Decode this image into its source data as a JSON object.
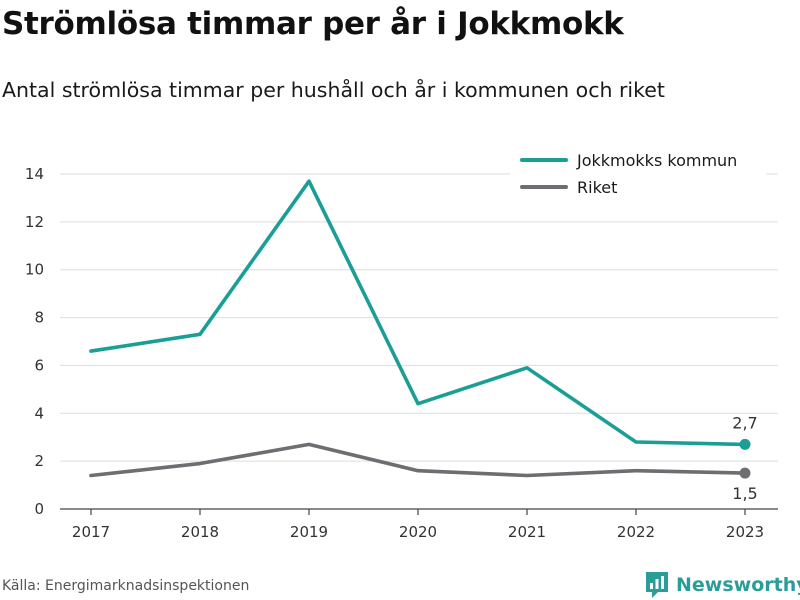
{
  "header": {
    "title": "Strömlösa timmar per år i Jokkmokk",
    "subtitle": "Antal strömlösa timmar per hushåll och år i kommunen och riket"
  },
  "footer": {
    "source": "Källa: Energimarknadsinspektionen",
    "brand": "Newsworthy"
  },
  "chart_data": {
    "type": "line",
    "title": "Strömlösa timmar per år i Jokkmokk",
    "subtitle": "Antal strömlösa timmar per hushåll och år i kommunen och riket",
    "x": [
      "2017",
      "2018",
      "2019",
      "2020",
      "2021",
      "2022",
      "2023"
    ],
    "xlabel": "",
    "ylabel": "",
    "ylim": [
      0,
      14
    ],
    "yticks": [
      0,
      2,
      4,
      6,
      8,
      10,
      12,
      14
    ],
    "grid": true,
    "legend_position": "top-right",
    "series": [
      {
        "name": "Jokkmokks kommun",
        "color": "#1a9e96",
        "values": [
          6.6,
          7.3,
          13.7,
          4.4,
          5.9,
          2.8,
          2.7
        ],
        "last_label": "2,7"
      },
      {
        "name": "Riket",
        "color": "#6d6d72",
        "values": [
          1.4,
          1.9,
          2.7,
          1.6,
          1.4,
          1.6,
          1.5
        ],
        "last_label": "1,5"
      }
    ]
  }
}
